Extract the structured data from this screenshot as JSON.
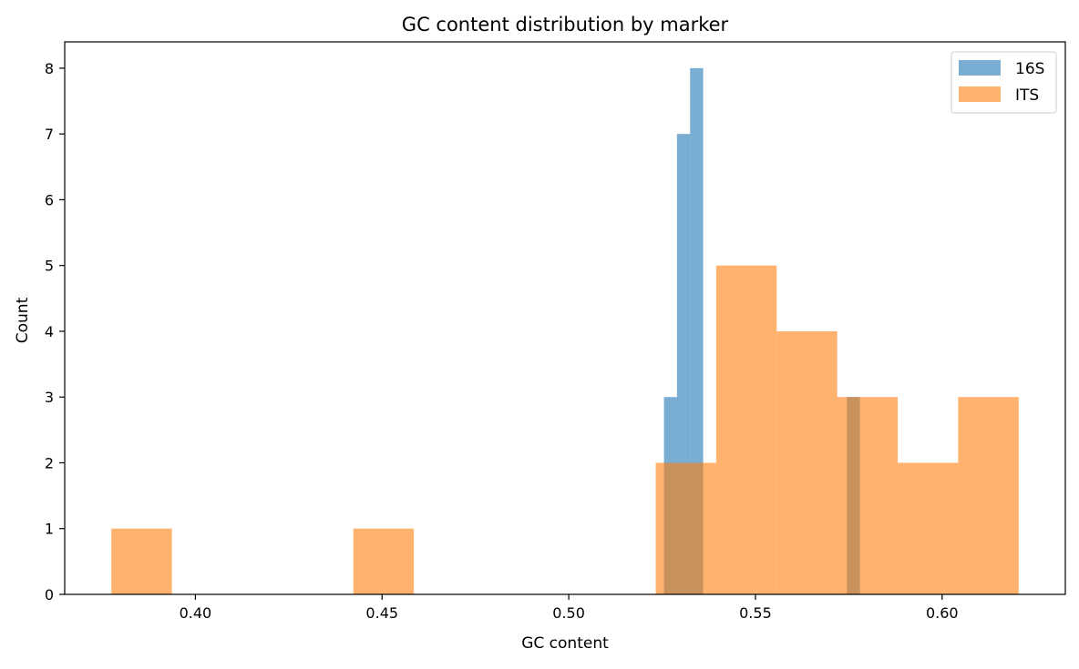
{
  "chart_data": {
    "type": "histogram",
    "title": "GC content distribution by marker",
    "xlabel": "GC content",
    "ylabel": "Count",
    "xlim": [
      0.365,
      0.633
    ],
    "ylim": [
      0,
      8.4
    ],
    "xticks": [
      0.4,
      0.45,
      0.5,
      0.55,
      0.6
    ],
    "xtick_labels": [
      "0.40",
      "0.45",
      "0.50",
      "0.55",
      "0.60"
    ],
    "yticks": [
      0,
      1,
      2,
      3,
      4,
      5,
      6,
      7,
      8
    ],
    "ytick_labels": [
      "0",
      "1",
      "2",
      "3",
      "4",
      "5",
      "6",
      "7",
      "8"
    ],
    "grid": false,
    "legend_position": "top-right",
    "series": [
      {
        "name": "16S",
        "color": "#1f77b4",
        "opacity": 0.6,
        "bins": [
          {
            "x0": 0.5255,
            "x1": 0.529,
            "count": 3
          },
          {
            "x0": 0.529,
            "x1": 0.5325,
            "count": 7
          },
          {
            "x0": 0.5325,
            "x1": 0.536,
            "count": 8
          },
          {
            "x0": 0.5745,
            "x1": 0.578,
            "count": 3
          }
        ]
      },
      {
        "name": "ITS",
        "color": "#ff7f0e",
        "opacity": 0.6,
        "bins": [
          {
            "x0": 0.3775,
            "x1": 0.3937,
            "count": 1
          },
          {
            "x0": 0.3937,
            "x1": 0.4099,
            "count": 0
          },
          {
            "x0": 0.4099,
            "x1": 0.4261,
            "count": 0
          },
          {
            "x0": 0.4261,
            "x1": 0.4423,
            "count": 0
          },
          {
            "x0": 0.4423,
            "x1": 0.4585,
            "count": 1
          },
          {
            "x0": 0.4585,
            "x1": 0.4747,
            "count": 0
          },
          {
            "x0": 0.4747,
            "x1": 0.4909,
            "count": 0
          },
          {
            "x0": 0.4909,
            "x1": 0.5071,
            "count": 0
          },
          {
            "x0": 0.5071,
            "x1": 0.5233,
            "count": 0
          },
          {
            "x0": 0.5233,
            "x1": 0.5395,
            "count": 2
          },
          {
            "x0": 0.5395,
            "x1": 0.5557,
            "count": 5
          },
          {
            "x0": 0.5557,
            "x1": 0.5719,
            "count": 4
          },
          {
            "x0": 0.5719,
            "x1": 0.5881,
            "count": 3
          },
          {
            "x0": 0.5881,
            "x1": 0.6043,
            "count": 2
          },
          {
            "x0": 0.6043,
            "x1": 0.6205,
            "count": 3
          }
        ]
      }
    ]
  }
}
